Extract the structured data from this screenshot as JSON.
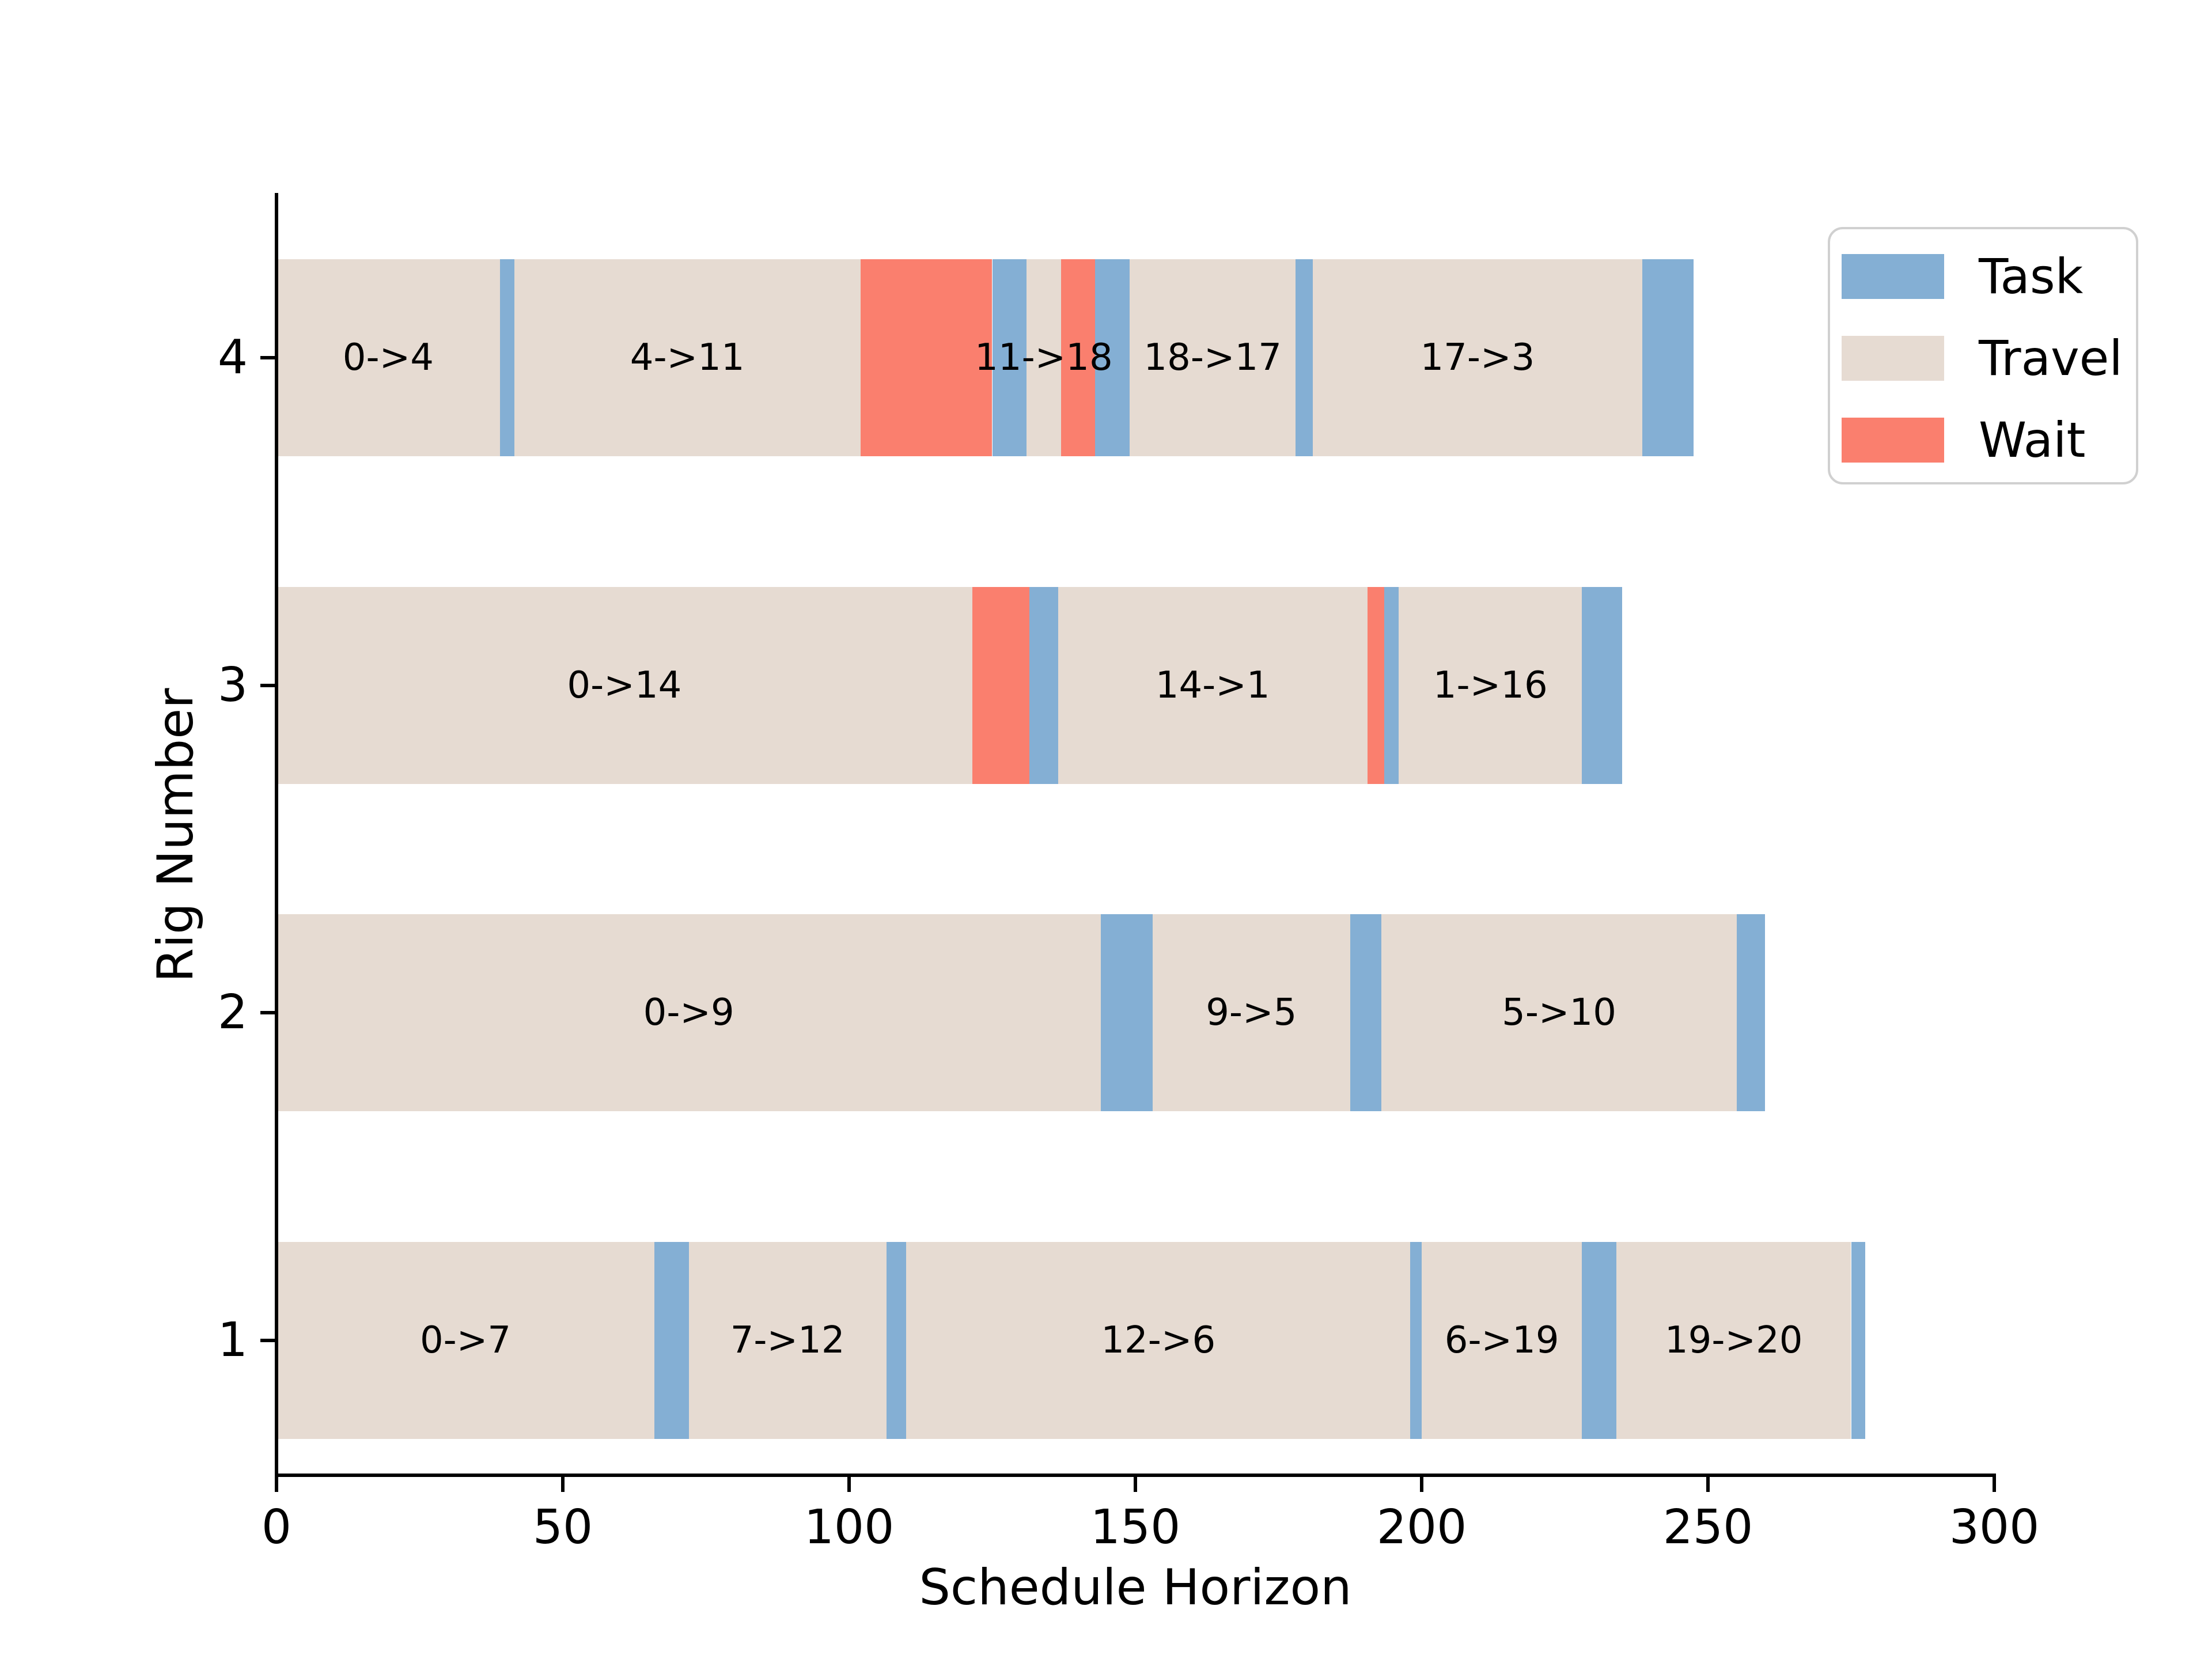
{
  "chart_data": {
    "type": "bar",
    "subtype": "horizontal-gantt",
    "title": "",
    "xlabel": "Schedule Horizon",
    "ylabel": "Rig Number",
    "xlim": [
      0,
      300
    ],
    "xticks": [
      0,
      50,
      100,
      150,
      200,
      250,
      300
    ],
    "grid": false,
    "legend": {
      "position": "upper-right",
      "entries": [
        {
          "key": "task",
          "label": "Task",
          "color": "#84afd4"
        },
        {
          "key": "travel",
          "label": "Travel",
          "color": "#e6dbd2"
        },
        {
          "key": "wait",
          "label": "Wait",
          "color": "#fa7f6e"
        }
      ]
    },
    "colors": {
      "task": "#84afd4",
      "travel": "#e6dbd2",
      "wait": "#fa7f6e"
    },
    "rows": [
      {
        "rig": "4",
        "segments": [
          {
            "kind": "travel",
            "label": "0->4",
            "start": 0,
            "end": 39
          },
          {
            "kind": "task",
            "start": 39,
            "end": 41.5
          },
          {
            "kind": "travel",
            "label": "4->11",
            "start": 41.5,
            "end": 102
          },
          {
            "kind": "wait",
            "start": 102,
            "end": 125
          },
          {
            "kind": "task",
            "start": 125,
            "end": 131
          },
          {
            "kind": "travel",
            "label": "11->18",
            "start": 131,
            "end": 137
          },
          {
            "kind": "wait",
            "start": 137,
            "end": 143
          },
          {
            "kind": "task",
            "start": 143,
            "end": 149
          },
          {
            "kind": "travel",
            "label": "18->17",
            "start": 149,
            "end": 178
          },
          {
            "kind": "task",
            "start": 178,
            "end": 181
          },
          {
            "kind": "travel",
            "label": "17->3",
            "start": 181,
            "end": 238.5
          },
          {
            "kind": "task",
            "start": 238.5,
            "end": 247.5
          }
        ]
      },
      {
        "rig": "3",
        "segments": [
          {
            "kind": "travel",
            "label": "0->14",
            "start": 0,
            "end": 121.5
          },
          {
            "kind": "wait",
            "start": 121.5,
            "end": 131.5
          },
          {
            "kind": "task",
            "start": 131.5,
            "end": 136.5
          },
          {
            "kind": "travel",
            "label": "14->1",
            "start": 136.5,
            "end": 190.5
          },
          {
            "kind": "wait",
            "start": 190.5,
            "end": 193.5
          },
          {
            "kind": "task",
            "start": 193.5,
            "end": 196
          },
          {
            "kind": "travel",
            "label": "1->16",
            "start": 196,
            "end": 228
          },
          {
            "kind": "task",
            "start": 228,
            "end": 235
          }
        ]
      },
      {
        "rig": "2",
        "segments": [
          {
            "kind": "travel",
            "label": "0->9",
            "start": 0,
            "end": 144
          },
          {
            "kind": "task",
            "start": 144,
            "end": 153
          },
          {
            "kind": "travel",
            "label": "9->5",
            "start": 153,
            "end": 187.5
          },
          {
            "kind": "task",
            "start": 187.5,
            "end": 193
          },
          {
            "kind": "travel",
            "label": "5->10",
            "start": 193,
            "end": 255
          },
          {
            "kind": "task",
            "start": 255,
            "end": 260
          }
        ]
      },
      {
        "rig": "1",
        "segments": [
          {
            "kind": "travel",
            "label": "0->7",
            "start": 0,
            "end": 66
          },
          {
            "kind": "task",
            "start": 66,
            "end": 72
          },
          {
            "kind": "travel",
            "label": "7->12",
            "start": 72,
            "end": 106.5
          },
          {
            "kind": "task",
            "start": 106.5,
            "end": 110
          },
          {
            "kind": "travel",
            "label": "12->6",
            "start": 110,
            "end": 198
          },
          {
            "kind": "task",
            "start": 198,
            "end": 200
          },
          {
            "kind": "travel",
            "label": "6->19",
            "start": 200,
            "end": 228
          },
          {
            "kind": "task",
            "start": 228,
            "end": 234
          },
          {
            "kind": "travel",
            "label": "19->20",
            "start": 234,
            "end": 275
          },
          {
            "kind": "task",
            "start": 275,
            "end": 277.5
          }
        ]
      }
    ]
  }
}
